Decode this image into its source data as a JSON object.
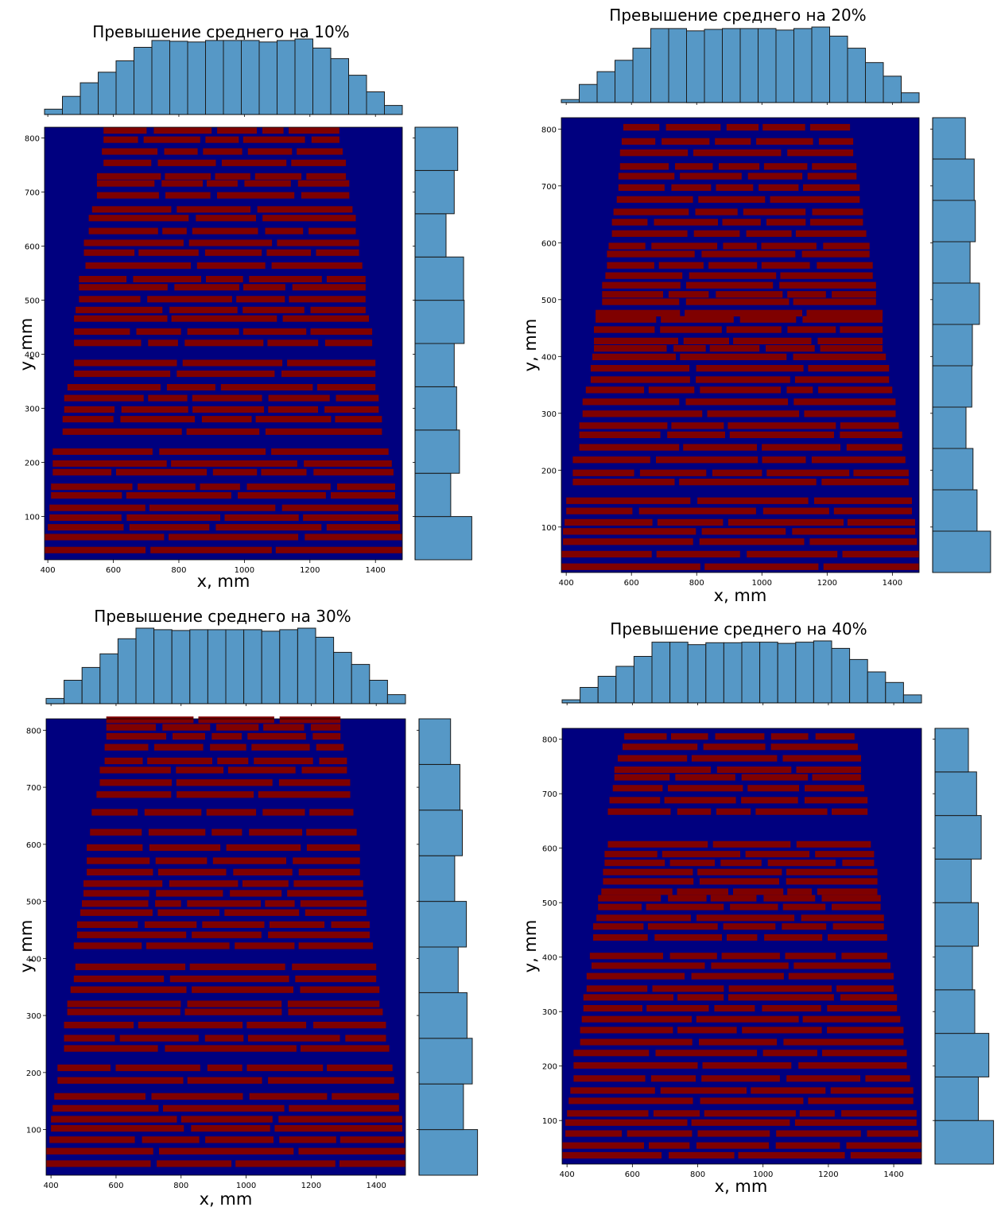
{
  "chart_data": [
    {
      "type": "heatmap",
      "title": "Превышение среднего на 10%",
      "xlabel": "x, mm",
      "ylabel": "y, mm",
      "xlim": [
        390,
        1482
      ],
      "ylim": [
        20,
        820
      ],
      "xticks": [
        400,
        600,
        800,
        1000,
        1200,
        1400
      ],
      "yticks": [
        100,
        200,
        300,
        400,
        500,
        600,
        700,
        800
      ],
      "colors": {
        "below": "#00007f",
        "above": "#7f0000",
        "hist": "#5698c6"
      },
      "rows_y": [
        38,
        62,
        80,
        98,
        116,
        139,
        155,
        182,
        198,
        220,
        257,
        280,
        298,
        319,
        339,
        364,
        384,
        421,
        442,
        466,
        482,
        502,
        524,
        539,
        564,
        588,
        606,
        628,
        652,
        668,
        694,
        716,
        729,
        754,
        775,
        797,
        814
      ],
      "rows_left": [
        390,
        390,
        400,
        405,
        405,
        410,
        410,
        415,
        415,
        415,
        445,
        445,
        450,
        450,
        460,
        480,
        480,
        480,
        480,
        480,
        485,
        495,
        495,
        495,
        515,
        510,
        510,
        525,
        525,
        535,
        550,
        550,
        550,
        570,
        565,
        570,
        570
      ],
      "rows_right": [
        1482,
        1482,
        1475,
        1470,
        1470,
        1460,
        1460,
        1455,
        1450,
        1440,
        1420,
        1420,
        1410,
        1410,
        1400,
        1400,
        1400,
        1390,
        1390,
        1380,
        1370,
        1370,
        1370,
        1370,
        1360,
        1350,
        1350,
        1340,
        1340,
        1330,
        1320,
        1320,
        1310,
        1310,
        1300,
        1290,
        1290
      ],
      "hist_x": [
        0.07,
        0.24,
        0.42,
        0.56,
        0.71,
        0.89,
        0.98,
        0.97,
        0.96,
        0.98,
        0.98,
        0.98,
        0.96,
        0.98,
        1.0,
        0.88,
        0.74,
        0.52,
        0.3,
        0.12
      ],
      "hist_y": [
        0.97,
        0.61,
        0.76,
        0.71,
        0.67,
        0.84,
        0.83,
        0.53,
        0.67,
        0.73
      ]
    },
    {
      "type": "heatmap",
      "title": "Превышение среднего на 20%",
      "xlabel": "x, mm",
      "ylabel": "y, mm",
      "xlim": [
        385,
        1482
      ],
      "ylim": [
        20,
        820
      ],
      "xticks": [
        400,
        600,
        800,
        1000,
        1200,
        1400
      ],
      "yticks": [
        100,
        200,
        300,
        400,
        500,
        600,
        700,
        800
      ],
      "colors": {
        "below": "#00007f",
        "above": "#7f0000",
        "hist": "#5698c6"
      },
      "rows_y": [
        30,
        52,
        74,
        92,
        108,
        128,
        146,
        179,
        195,
        218,
        240,
        262,
        278,
        299,
        320,
        341,
        359,
        379,
        399,
        414,
        427,
        447,
        465,
        476,
        496,
        509,
        525,
        542,
        560,
        580,
        594,
        616,
        636,
        654,
        676,
        697,
        717,
        734,
        758,
        778,
        803
      ],
      "rows_left": [
        385,
        385,
        390,
        390,
        395,
        400,
        400,
        420,
        420,
        420,
        440,
        440,
        440,
        450,
        450,
        460,
        475,
        475,
        480,
        485,
        485,
        485,
        490,
        490,
        510,
        510,
        510,
        520,
        525,
        525,
        530,
        540,
        540,
        545,
        555,
        560,
        560,
        565,
        565,
        570,
        575
      ],
      "rows_right": [
        1482,
        1482,
        1475,
        1470,
        1470,
        1460,
        1460,
        1450,
        1450,
        1440,
        1430,
        1430,
        1420,
        1410,
        1410,
        1400,
        1390,
        1390,
        1380,
        1370,
        1370,
        1370,
        1370,
        1370,
        1350,
        1350,
        1350,
        1340,
        1340,
        1330,
        1330,
        1320,
        1310,
        1310,
        1300,
        1300,
        1290,
        1290,
        1280,
        1280,
        1270
      ],
      "hist_x": [
        0.04,
        0.24,
        0.41,
        0.56,
        0.72,
        0.98,
        0.98,
        0.95,
        0.97,
        0.98,
        0.98,
        0.98,
        0.96,
        0.98,
        1.0,
        0.88,
        0.72,
        0.53,
        0.35,
        0.13
      ],
      "hist_y": [
        0.99,
        0.76,
        0.69,
        0.57,
        0.67,
        0.68,
        0.8,
        0.64,
        0.73,
        0.71,
        0.56
      ]
    },
    {
      "type": "heatmap",
      "title": "Превышение среднего на 30%",
      "xlabel": "x, mm",
      "ylabel": "y, mm",
      "xlim": [
        385,
        1490
      ],
      "ylim": [
        20,
        820
      ],
      "xticks": [
        400,
        600,
        800,
        1000,
        1200,
        1400
      ],
      "yticks": [
        100,
        200,
        300,
        400,
        500,
        600,
        700,
        800
      ],
      "colors": {
        "below": "#00007f",
        "above": "#7f0000",
        "hist": "#5698c6"
      },
      "rows_y": [
        40,
        62,
        82,
        102,
        118,
        137,
        158,
        186,
        208,
        242,
        260,
        283,
        306,
        320,
        345,
        364,
        385,
        422,
        441,
        459,
        480,
        496,
        514,
        531,
        551,
        571,
        594,
        621,
        656,
        687,
        708,
        730,
        746,
        770,
        789,
        805,
        818
      ],
      "rows_left": [
        385,
        385,
        395,
        400,
        400,
        405,
        410,
        420,
        420,
        440,
        440,
        440,
        450,
        450,
        460,
        470,
        475,
        470,
        480,
        480,
        490,
        495,
        500,
        500,
        510,
        510,
        510,
        520,
        525,
        540,
        550,
        550,
        565,
        565,
        570,
        570,
        570
      ],
      "rows_right": [
        1490,
        1490,
        1485,
        1480,
        1480,
        1470,
        1470,
        1455,
        1450,
        1440,
        1430,
        1430,
        1420,
        1410,
        1410,
        1400,
        1400,
        1390,
        1380,
        1380,
        1370,
        1370,
        1360,
        1360,
        1350,
        1350,
        1350,
        1340,
        1330,
        1320,
        1320,
        1310,
        1310,
        1300,
        1290,
        1290,
        1290
      ],
      "hist_x": [
        0.07,
        0.31,
        0.48,
        0.66,
        0.86,
        1.0,
        0.98,
        0.97,
        0.98,
        0.98,
        0.98,
        0.98,
        0.96,
        0.98,
        1.0,
        0.88,
        0.68,
        0.52,
        0.31,
        0.12
      ],
      "hist_y": [
        1.0,
        0.76,
        0.91,
        0.82,
        0.67,
        0.81,
        0.61,
        0.74,
        0.7,
        0.54
      ]
    },
    {
      "type": "heatmap",
      "title": "Превышение среднего на 40%",
      "xlabel": "x, mm",
      "ylabel": "y, mm",
      "xlim": [
        385,
        1485
      ],
      "ylim": [
        20,
        820
      ],
      "xticks": [
        400,
        600,
        800,
        1000,
        1200,
        1400
      ],
      "yticks": [
        100,
        200,
        300,
        400,
        500,
        600,
        700,
        800
      ],
      "colors": {
        "below": "#00007f",
        "above": "#7f0000",
        "hist": "#5698c6"
      },
      "rows_y": [
        36,
        54,
        76,
        96,
        113,
        136,
        155,
        177,
        201,
        224,
        244,
        266,
        286,
        306,
        326,
        342,
        365,
        384,
        402,
        436,
        456,
        472,
        492,
        508,
        520,
        539,
        556,
        573,
        589,
        607,
        667,
        688,
        710,
        730,
        744,
        765,
        786,
        805
      ],
      "rows_left": [
        385,
        385,
        395,
        395,
        400,
        405,
        410,
        420,
        420,
        420,
        440,
        440,
        445,
        450,
        450,
        460,
        460,
        475,
        470,
        480,
        480,
        490,
        495,
        495,
        505,
        510,
        510,
        515,
        515,
        525,
        525,
        530,
        540,
        545,
        545,
        555,
        570,
        575
      ],
      "rows_right": [
        1485,
        1485,
        1475,
        1470,
        1470,
        1460,
        1460,
        1450,
        1440,
        1440,
        1430,
        1430,
        1420,
        1410,
        1410,
        1400,
        1400,
        1390,
        1380,
        1380,
        1370,
        1370,
        1360,
        1360,
        1350,
        1350,
        1350,
        1340,
        1340,
        1330,
        1320,
        1320,
        1310,
        1300,
        1300,
        1300,
        1290,
        1280
      ],
      "hist_x": [
        0.05,
        0.25,
        0.43,
        0.59,
        0.75,
        0.98,
        0.98,
        0.94,
        0.97,
        0.97,
        0.98,
        0.98,
        0.96,
        0.98,
        1.0,
        0.88,
        0.7,
        0.5,
        0.33,
        0.13
      ],
      "hist_y": [
        1.0,
        0.74,
        0.92,
        0.68,
        0.64,
        0.74,
        0.62,
        0.79,
        0.71,
        0.57
      ]
    }
  ]
}
